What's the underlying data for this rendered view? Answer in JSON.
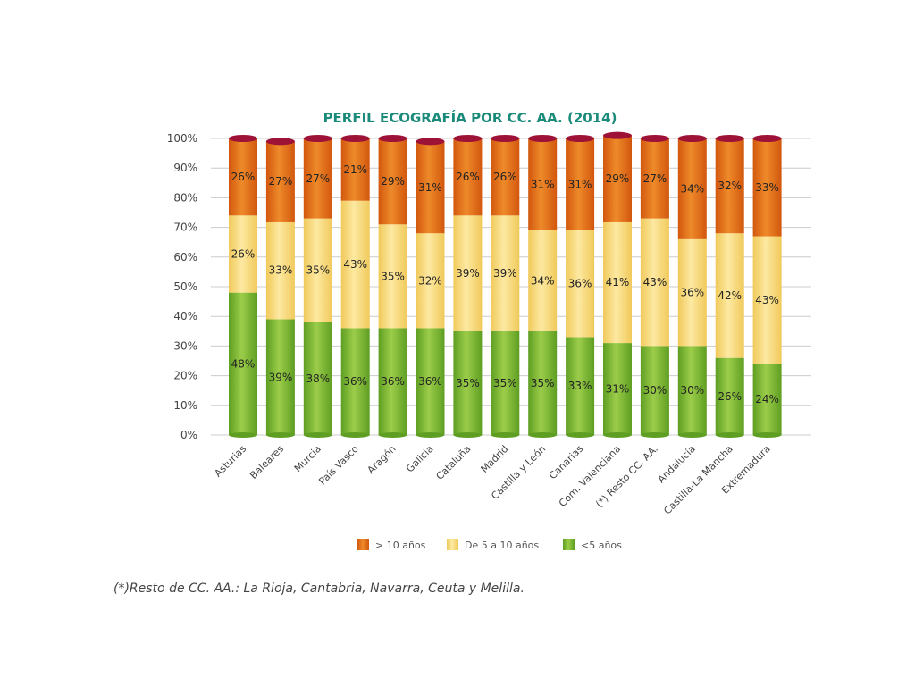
{
  "footnote": "(*)Resto de CC. AA.: La Rioja, Cantabria, Navarra, Ceuta y Melilla.",
  "colors": {
    "title": "#1a8a7a",
    "gt10_dark": "#d2570e",
    "gt10_light": "#ee8a2a",
    "mid_dark": "#f0c95a",
    "mid_light": "#fde9a2",
    "lt5_dark": "#5e9e22",
    "lt5_light": "#9ccd4a",
    "cap": "#9e1237",
    "grid": "#cccccc"
  },
  "chart_data": {
    "type": "bar",
    "stacked": true,
    "title": "PERFIL ECOGRAFÍA POR CC. AA. (2014)",
    "categories": [
      "Asturias",
      "Baleares",
      "Murcia",
      "País Vasco",
      "Aragón",
      "Galicia",
      "Cataluña",
      "Madrid",
      "Castilla y León",
      "Canarias",
      "Com. Valenciana",
      "(*) Resto CC. AA.",
      "Andalucía",
      "Castilla-La Mancha",
      "Extremadura"
    ],
    "series": [
      {
        "name": "<5 años",
        "values": [
          48,
          39,
          38,
          36,
          36,
          36,
          35,
          35,
          35,
          33,
          31,
          30,
          30,
          26,
          24
        ]
      },
      {
        "name": "De 5 a 10 años",
        "values": [
          26,
          33,
          35,
          43,
          35,
          32,
          39,
          39,
          34,
          36,
          41,
          43,
          36,
          42,
          43
        ]
      },
      {
        "name": "> 10 años",
        "values": [
          26,
          27,
          27,
          21,
          29,
          31,
          26,
          26,
          31,
          31,
          29,
          27,
          34,
          32,
          33
        ]
      }
    ],
    "ylim": [
      0,
      100
    ],
    "yticks": [
      "0%",
      "10%",
      "20%",
      "30%",
      "40%",
      "50%",
      "60%",
      "70%",
      "80%",
      "90%",
      "100%"
    ],
    "legend": [
      "> 10 años",
      "De 5 a 10 años",
      "<5 años"
    ],
    "legend_position": "bottom",
    "grid": true
  }
}
